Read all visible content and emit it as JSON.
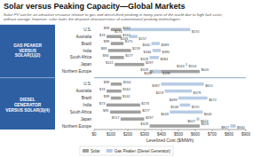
{
  "chart_data": {
    "type": "bar",
    "orientation": "horizontal",
    "title": "Solar versus Peaking Capacity—Global Markets",
    "subtitle": "Solar PV can be an attractive resource relative to gas and diesel-fired peaking in many parts of the world due to high fuel costs;\nwithout storage, however, solar lacks the dispatch characteristics of conventional peaking technologies",
    "x_label": "Levelized Cost ($/MWh)",
    "sections": [
      {
        "label": "GAS PEAKER\nVERSUS\nSOLAR(1)(2)",
        "color": "#2e5fa3",
        "categories": [
          "U.S.",
          "Australia",
          "Brazil",
          "India",
          "South Africa",
          "Japan",
          "Northern Europe"
        ]
      },
      {
        "label": "DIESEL\nGENERATOR\nVERSUS SOLAR(3)(4)",
        "color": "#2e5fa3",
        "categories": [
          "U.S.",
          "Australia",
          "Brazil",
          "India",
          "South Africa",
          "Japan",
          "Northern Europe"
        ]
      }
    ],
    "series": [
      {
        "name": "Solar",
        "color": "#a0a0a0",
        "values": [
          [
            99,
            162
          ],
          [
            74,
            162
          ],
          [
            99,
            175
          ],
          [
            83,
            219
          ],
          [
            94,
            177
          ],
          [
            122,
            297
          ],
          [
            329,
            626
          ],
          [
            99,
            164
          ],
          [
            74,
            162
          ],
          [
            99,
            161
          ],
          [
            73,
            273
          ],
          [
            95,
            277
          ],
          [
            157,
            297
          ],
          [
            329,
            626
          ]
        ],
        "value_labels": [
          [
            "$99",
            "$162"
          ],
          [
            "$74",
            "$162"
          ],
          [
            "$99",
            "$175"
          ],
          [
            "$83",
            "$219"
          ],
          [
            "$94",
            "$177"
          ],
          [
            "$122",
            "$297"
          ],
          [
            "$329",
            "$626"
          ],
          [
            "$99",
            "$164"
          ],
          [
            "$74",
            "$162"
          ],
          [
            "$99",
            "$161"
          ],
          [
            "$73",
            "$273"
          ],
          [
            "$95",
            "$277"
          ],
          [
            "$157",
            "$297"
          ],
          [
            "$329",
            "$626"
          ]
        ]
      },
      {
        "name": "Gas Peaker (Diesel Generator)",
        "color": "#b8cce4",
        "values": [
          [
            174,
            570
          ],
          [
            209,
            257
          ],
          [
            340,
            389
          ],
          [
            346,
            395
          ],
          [
            329,
            384
          ],
          [
            543,
            553
          ],
          [
            349,
            398
          ],
          [
            397,
            651
          ],
          [
            419,
            579
          ],
          [
            499,
            672
          ],
          [
            508,
            570
          ],
          [
            449,
            644
          ],
          [
            607,
            624
          ],
          [
            807,
            840
          ]
        ],
        "value_labels": [
          [
            "$174",
            "$570"
          ],
          [
            "$209",
            "$257"
          ],
          [
            "$340",
            "$389"
          ],
          [
            "$346",
            "$395"
          ],
          [
            "$329",
            "$384"
          ],
          [
            "$543",
            "$553"
          ],
          [
            "$349",
            "$398"
          ],
          [
            "$397",
            "$651"
          ],
          [
            "$419",
            "$579"
          ],
          [
            "$499",
            "$672"
          ],
          [
            "$508",
            "$570"
          ],
          [
            "$449",
            "$644"
          ],
          [
            "$607",
            "$624"
          ],
          [
            "$807",
            "$840"
          ]
        ]
      }
    ],
    "xlim": [
      0,
      900
    ],
    "xticks": [
      {
        "value": 0,
        "label": "$0"
      },
      {
        "value": 100,
        "label": "$100"
      },
      {
        "value": 200,
        "label": "$200"
      },
      {
        "value": 300,
        "label": "$300"
      },
      {
        "value": 400,
        "label": "$400"
      },
      {
        "value": 500,
        "label": "$500"
      },
      {
        "value": 600,
        "label": "$600"
      },
      {
        "value": 700,
        "label": "$700"
      },
      {
        "value": 800,
        "label": "$800"
      },
      {
        "value": 900,
        "label": "$900"
      }
    ],
    "data_labels": true,
    "grid": false,
    "legend": "bottom"
  }
}
